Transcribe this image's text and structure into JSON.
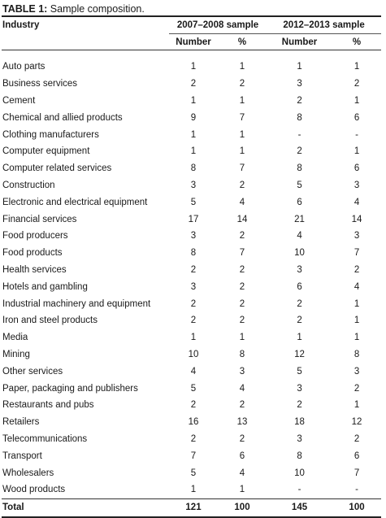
{
  "caption": {
    "label": "TABLE 1:",
    "text": " Sample composition."
  },
  "header": {
    "industry": "Industry",
    "group1": "2007–2008 sample",
    "group2": "2012–2013 sample",
    "number": "Number",
    "percent": "%"
  },
  "rows": [
    {
      "industry": "Auto parts",
      "n1": "1",
      "p1": "1",
      "n2": "1",
      "p2": "1"
    },
    {
      "industry": "Business services",
      "n1": "2",
      "p1": "2",
      "n2": "3",
      "p2": "2"
    },
    {
      "industry": "Cement",
      "n1": "1",
      "p1": "1",
      "n2": "2",
      "p2": "1"
    },
    {
      "industry": "Chemical and allied products",
      "n1": "9",
      "p1": "7",
      "n2": "8",
      "p2": "6"
    },
    {
      "industry": "Clothing manufacturers",
      "n1": "1",
      "p1": "1",
      "n2": "-",
      "p2": "-"
    },
    {
      "industry": "Computer equipment",
      "n1": "1",
      "p1": "1",
      "n2": "2",
      "p2": "1"
    },
    {
      "industry": "Computer related services",
      "n1": "8",
      "p1": "7",
      "n2": "8",
      "p2": "6"
    },
    {
      "industry": "Construction",
      "n1": "3",
      "p1": "2",
      "n2": "5",
      "p2": "3"
    },
    {
      "industry": "Electronic and electrical equipment",
      "n1": "5",
      "p1": "4",
      "n2": "6",
      "p2": "4"
    },
    {
      "industry": "Financial services",
      "n1": "17",
      "p1": "14",
      "n2": "21",
      "p2": "14"
    },
    {
      "industry": "Food producers",
      "n1": "3",
      "p1": "2",
      "n2": "4",
      "p2": "3"
    },
    {
      "industry": "Food products",
      "n1": "8",
      "p1": "7",
      "n2": "10",
      "p2": "7"
    },
    {
      "industry": "Health services",
      "n1": "2",
      "p1": "2",
      "n2": "3",
      "p2": "2"
    },
    {
      "industry": "Hotels and gambling",
      "n1": "3",
      "p1": "2",
      "n2": "6",
      "p2": "4"
    },
    {
      "industry": "Industrial machinery and equipment",
      "n1": "2",
      "p1": "2",
      "n2": "2",
      "p2": "1"
    },
    {
      "industry": "Iron and steel products",
      "n1": "2",
      "p1": "2",
      "n2": "2",
      "p2": "1"
    },
    {
      "industry": "Media",
      "n1": "1",
      "p1": "1",
      "n2": "1",
      "p2": "1"
    },
    {
      "industry": "Mining",
      "n1": "10",
      "p1": "8",
      "n2": "12",
      "p2": "8"
    },
    {
      "industry": "Other services",
      "n1": "4",
      "p1": "3",
      "n2": "5",
      "p2": "3"
    },
    {
      "industry": "Paper, packaging and publishers",
      "n1": "5",
      "p1": "4",
      "n2": "3",
      "p2": "2"
    },
    {
      "industry": "Restaurants and pubs",
      "n1": "2",
      "p1": "2",
      "n2": "2",
      "p2": "1"
    },
    {
      "industry": "Retailers",
      "n1": "16",
      "p1": "13",
      "n2": "18",
      "p2": "12"
    },
    {
      "industry": "Telecommunications",
      "n1": "2",
      "p1": "2",
      "n2": "3",
      "p2": "2"
    },
    {
      "industry": "Transport",
      "n1": "7",
      "p1": "6",
      "n2": "8",
      "p2": "6"
    },
    {
      "industry": "Wholesalers",
      "n1": "5",
      "p1": "4",
      "n2": "10",
      "p2": "7"
    },
    {
      "industry": "Wood products",
      "n1": "1",
      "p1": "1",
      "n2": "-",
      "p2": "-"
    }
  ],
  "total": {
    "industry": "Total",
    "n1": "121",
    "p1": "100",
    "n2": "145",
    "p2": "100"
  }
}
